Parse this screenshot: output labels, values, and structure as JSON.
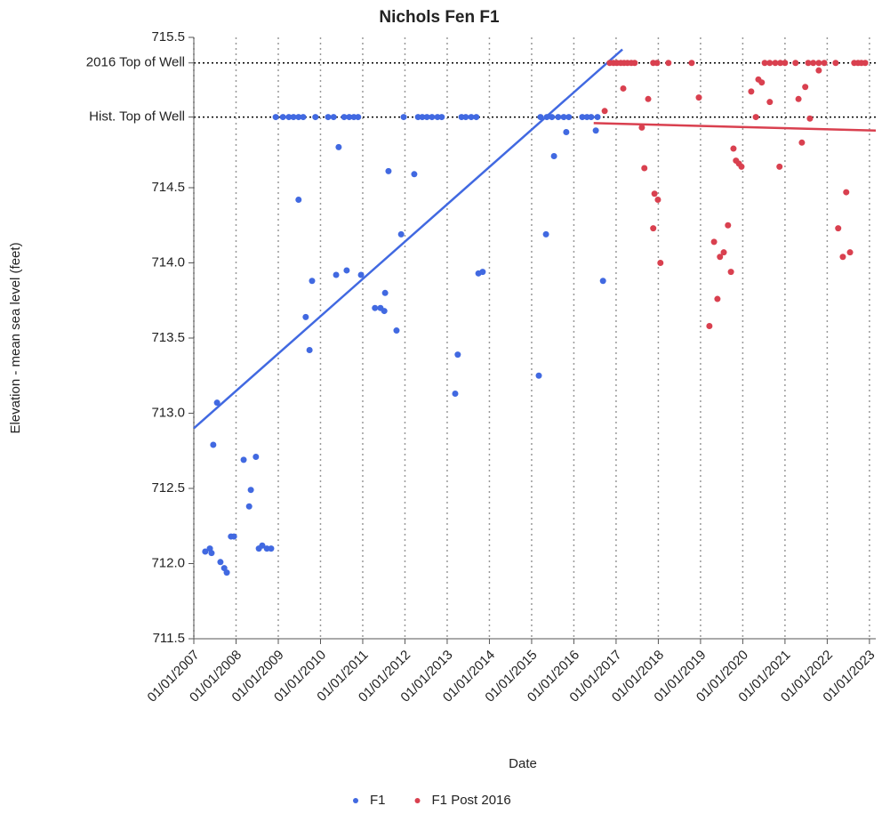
{
  "chart_data": {
    "type": "scatter",
    "title": "Nichols Fen F1",
    "x_label": "Date",
    "y_label": "Elevation - mean sea level (feet)",
    "xlim": [
      2007,
      2023.15
    ],
    "ylim": [
      711.5,
      715.5
    ],
    "xticks": [
      {
        "value": 2007,
        "label": "01/01/2007"
      },
      {
        "value": 2008,
        "label": "01/01/2008"
      },
      {
        "value": 2009,
        "label": "01/01/2009"
      },
      {
        "value": 2010,
        "label": "01/01/2010"
      },
      {
        "value": 2011,
        "label": "01/01/2011"
      },
      {
        "value": 2012,
        "label": "01/01/2012"
      },
      {
        "value": 2013,
        "label": "01/01/2013"
      },
      {
        "value": 2014,
        "label": "01/01/2014"
      },
      {
        "value": 2015,
        "label": "01/01/2015"
      },
      {
        "value": 2016,
        "label": "01/01/2016"
      },
      {
        "value": 2017,
        "label": "01/01/2017"
      },
      {
        "value": 2018,
        "label": "01/01/2018"
      },
      {
        "value": 2019,
        "label": "01/01/2019"
      },
      {
        "value": 2020,
        "label": "01/01/2020"
      },
      {
        "value": 2021,
        "label": "01/01/2021"
      },
      {
        "value": 2022,
        "label": "01/01/2022"
      },
      {
        "value": 2023,
        "label": "01/01/2023"
      }
    ],
    "yticks": [
      {
        "value": 711.5,
        "label": "711.5"
      },
      {
        "value": 712,
        "label": "712.0"
      },
      {
        "value": 712.5,
        "label": "712.5"
      },
      {
        "value": 713,
        "label": "713.0"
      },
      {
        "value": 713.5,
        "label": "713.5"
      },
      {
        "value": 714,
        "label": "714.0"
      },
      {
        "value": 714.5,
        "label": "714.5"
      },
      {
        "value": 715.5,
        "label": "715.5"
      }
    ],
    "x_grid": true,
    "reference_lines": [
      {
        "label": "2016 Top of Well",
        "value": 715.33
      },
      {
        "label": "Hist. Top of Well",
        "value": 714.97
      }
    ],
    "series": [
      {
        "name": "F1",
        "color": "#4169e1",
        "x": [
          2007.27,
          2007.38,
          2007.42,
          2007.46,
          2007.55,
          2007.63,
          2007.72,
          2007.78,
          2007.88,
          2007.95,
          2008.18,
          2008.31,
          2008.35,
          2008.47,
          2008.54,
          2008.62,
          2008.73,
          2008.83,
          2009.48,
          2009.65,
          2009.74,
          2009.8,
          2010.37,
          2010.43,
          2010.62,
          2010.96,
          2011.29,
          2011.42,
          2011.51,
          2011.53,
          2011.61,
          2011.8,
          2011.91,
          2012.22,
          2013.19,
          2013.25,
          2013.74,
          2013.84,
          2015.17,
          2015.34,
          2015.53,
          2015.82,
          2016.52,
          2016.69,
          2008.94,
          2009.11,
          2009.25,
          2009.36,
          2009.48,
          2009.59,
          2009.88,
          2010.18,
          2010.31,
          2010.56,
          2010.68,
          2010.79,
          2010.89,
          2011.97,
          2012.31,
          2012.41,
          2012.52,
          2012.64,
          2012.77,
          2012.87,
          2013.34,
          2013.44,
          2013.57,
          2013.69,
          2015.21,
          2015.36,
          2015.48,
          2015.63,
          2015.76,
          2015.88,
          2016.2,
          2016.31,
          2016.41,
          2016.56
        ],
        "values": [
          712.08,
          712.1,
          712.07,
          712.79,
          713.07,
          712.01,
          711.97,
          711.94,
          712.18,
          712.18,
          712.69,
          712.38,
          712.49,
          712.71,
          712.1,
          712.12,
          712.1,
          712.1,
          714.42,
          713.64,
          713.42,
          713.88,
          713.92,
          714.77,
          713.95,
          713.92,
          713.7,
          713.7,
          713.68,
          713.8,
          714.61,
          713.55,
          714.19,
          714.59,
          713.13,
          713.39,
          713.93,
          713.94,
          713.25,
          714.19,
          714.71,
          714.87,
          714.88,
          713.88,
          714.97,
          714.97,
          714.97,
          714.97,
          714.97,
          714.97,
          714.97,
          714.97,
          714.97,
          714.97,
          714.97,
          714.97,
          714.97,
          714.97,
          714.97,
          714.97,
          714.97,
          714.97,
          714.97,
          714.97,
          714.97,
          714.97,
          714.97,
          714.97,
          714.97,
          714.97,
          714.97,
          714.97,
          714.97,
          714.97,
          714.97,
          714.97,
          714.97,
          714.97
        ],
        "trend_x": [
          2007,
          2017.15
        ],
        "trend_y": [
          712.9,
          715.42
        ]
      },
      {
        "name": "F1 Post 2016",
        "color": "#d9404f",
        "x": [
          2016.73,
          2017.17,
          2017.61,
          2017.67,
          2017.76,
          2017.88,
          2017.91,
          2017.99,
          2018.05,
          2018.96,
          2019.21,
          2019.32,
          2019.4,
          2019.46,
          2019.55,
          2019.65,
          2019.72,
          2019.78,
          2019.84,
          2019.91,
          2019.97,
          2020.2,
          2020.31,
          2020.37,
          2020.45,
          2020.64,
          2020.87,
          2021.32,
          2021.4,
          2021.48,
          2021.59,
          2021.8,
          2022.26,
          2022.37,
          2022.45,
          2022.54,
          2016.85,
          2016.94,
          2017.02,
          2017.11,
          2017.19,
          2017.27,
          2017.36,
          2017.44,
          2017.88,
          2017.97,
          2018.24,
          2018.79,
          2020.52,
          2020.64,
          2020.77,
          2020.89,
          2021.0,
          2021.25,
          2021.55,
          2021.67,
          2021.8,
          2021.93,
          2022.2,
          2022.64,
          2022.73,
          2022.81,
          2022.9
        ],
        "values": [
          715.01,
          715.16,
          714.9,
          714.63,
          715.09,
          714.23,
          714.46,
          714.42,
          714.0,
          715.1,
          713.58,
          714.14,
          713.76,
          714.04,
          714.07,
          714.25,
          713.94,
          714.76,
          714.68,
          714.66,
          714.64,
          715.14,
          714.97,
          715.22,
          715.2,
          715.07,
          714.64,
          715.09,
          714.8,
          715.17,
          714.96,
          715.28,
          714.23,
          714.04,
          714.47,
          714.07,
          715.33,
          715.33,
          715.33,
          715.33,
          715.33,
          715.33,
          715.33,
          715.33,
          715.33,
          715.33,
          715.33,
          715.33,
          715.33,
          715.33,
          715.33,
          715.33,
          715.33,
          715.33,
          715.33,
          715.33,
          715.33,
          715.33,
          715.33,
          715.33,
          715.33,
          715.33,
          715.33
        ],
        "trend_x": [
          2016.47,
          2023.15
        ],
        "trend_y": [
          714.93,
          714.88
        ]
      }
    ]
  }
}
